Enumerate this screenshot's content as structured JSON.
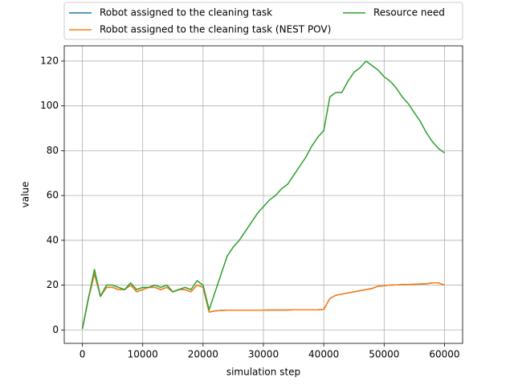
{
  "chart_data": {
    "type": "line",
    "x_label": "simulation step",
    "y_label": "value",
    "x": [
      0,
      1000,
      2000,
      3000,
      4000,
      5000,
      6000,
      7000,
      8000,
      9000,
      10000,
      11000,
      12000,
      13000,
      14000,
      15000,
      16000,
      17000,
      18000,
      19000,
      20000,
      21000,
      22000,
      23000,
      24000,
      25000,
      26000,
      27000,
      28000,
      29000,
      30000,
      31000,
      32000,
      33000,
      34000,
      35000,
      36000,
      37000,
      38000,
      39000,
      40000,
      41000,
      42000,
      43000,
      44000,
      45000,
      46000,
      47000,
      48000,
      49000,
      50000,
      51000,
      52000,
      53000,
      54000,
      55000,
      56000,
      57000,
      58000,
      59000,
      60000
    ],
    "series": [
      {
        "name": "Robot assigned to the cleaning task",
        "color": "#1f77b4",
        "values": [
          0.5,
          14,
          25,
          15,
          19,
          19,
          18,
          18,
          20,
          17,
          18,
          19,
          19,
          18,
          19,
          17,
          18,
          18,
          17,
          20,
          19,
          8,
          8.5,
          8.7,
          8.8,
          8.8,
          8.8,
          8.8,
          8.8,
          8.8,
          8.8,
          8.9,
          8.9,
          8.9,
          8.9,
          9,
          9,
          9,
          9,
          9,
          9.2,
          14,
          15.5,
          16,
          16.5,
          17,
          17.5,
          18,
          18.5,
          19.5,
          19.8,
          20,
          20.1,
          20.2,
          20.3,
          20.4,
          20.5,
          20.6,
          21,
          21,
          20
        ]
      },
      {
        "name": "Robot assigned to the cleaning task (NEST POV)",
        "color": "#ff7f0e",
        "values": [
          0.5,
          14,
          25,
          15,
          19,
          19,
          18,
          18,
          20,
          17,
          18,
          19,
          19,
          18,
          19,
          17,
          18,
          18,
          17,
          20,
          19,
          8,
          8.5,
          8.7,
          8.8,
          8.8,
          8.8,
          8.8,
          8.8,
          8.8,
          8.8,
          8.9,
          8.9,
          8.9,
          8.9,
          9,
          9,
          9,
          9,
          9,
          9.2,
          14,
          15.5,
          16,
          16.5,
          17,
          17.5,
          18,
          18.5,
          19.5,
          19.8,
          20,
          20.1,
          20.2,
          20.3,
          20.4,
          20.5,
          20.6,
          21,
          21,
          20
        ]
      },
      {
        "name": "Resource need",
        "color": "#2ca02c",
        "values": [
          0.5,
          14,
          27,
          15,
          20,
          20,
          19,
          18,
          21,
          18,
          19,
          19,
          20,
          19,
          20,
          17,
          18,
          19,
          18,
          22,
          20,
          9,
          17,
          25,
          33,
          37,
          40,
          44,
          48,
          52,
          55,
          58,
          60,
          63,
          65,
          69,
          73,
          77,
          82,
          86,
          89,
          104,
          106,
          106,
          111,
          115,
          117,
          120,
          118,
          116,
          113,
          111,
          108,
          104,
          101,
          97,
          93,
          88,
          84,
          81,
          79
        ]
      }
    ],
    "xlim": [
      -3000,
      63000
    ],
    "ylim": [
      -6,
      126.8
    ],
    "xticks": [
      0,
      10000,
      20000,
      30000,
      40000,
      50000,
      60000
    ],
    "yticks": [
      0,
      20,
      40,
      60,
      80,
      100,
      120
    ],
    "grid": true,
    "legend": "top"
  }
}
